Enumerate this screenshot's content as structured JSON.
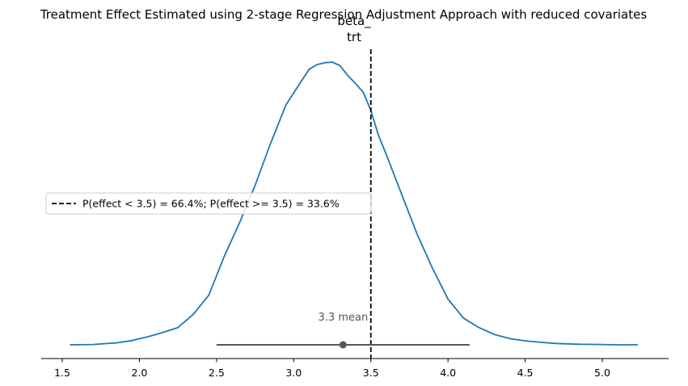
{
  "chart_data": {
    "type": "area",
    "title": "Treatment Effect Estimated using 2-stage Regression Adjustment Approach with reduced covariates",
    "subtitle_lines": [
      "beta_",
      "trt"
    ],
    "xlabel": "",
    "ylabel": "",
    "xlim": [
      1.37,
      5.38
    ],
    "x_ticks": [
      "1.5",
      "2.0",
      "2.5",
      "3.0",
      "3.5",
      "4.0",
      "4.5",
      "5.0"
    ],
    "x_tick_values": [
      1.5,
      2.0,
      2.5,
      3.0,
      3.5,
      4.0,
      4.5,
      5.0
    ],
    "series": [
      {
        "color": "#1f77b4",
        "x": [
          1.55,
          1.7,
          1.85,
          1.95,
          2.05,
          2.15,
          2.25,
          2.35,
          2.45,
          2.55,
          2.65,
          2.75,
          2.85,
          2.95,
          3.05,
          3.1,
          3.15,
          3.2,
          3.25,
          3.3,
          3.35,
          3.4,
          3.45,
          3.5,
          3.55,
          3.6,
          3.7,
          3.8,
          3.9,
          4.0,
          4.1,
          4.2,
          4.3,
          4.4,
          4.5,
          4.6,
          4.7,
          4.85,
          5.0,
          5.1,
          5.23
        ],
        "y": [
          0.0,
          0.001,
          0.007,
          0.015,
          0.028,
          0.043,
          0.061,
          0.108,
          0.176,
          0.313,
          0.433,
          0.565,
          0.713,
          0.849,
          0.933,
          0.975,
          0.991,
          0.998,
          1.0,
          0.988,
          0.953,
          0.925,
          0.894,
          0.829,
          0.74,
          0.673,
          0.532,
          0.391,
          0.27,
          0.162,
          0.095,
          0.061,
          0.037,
          0.022,
          0.014,
          0.009,
          0.005,
          0.002,
          0.001,
          0.0,
          0.0
        ]
      }
    ],
    "reference_line": {
      "value": 3.5,
      "style": "dashed",
      "color": "#000000"
    },
    "mean": {
      "value": 3.32,
      "label": "3.3 mean"
    },
    "hdi": {
      "low": 2.5,
      "high": 4.14,
      "color": "#555555"
    },
    "legend": {
      "entries": [
        "P(effect < 3.5) = 66.4%; P(effect >= 3.5) = 33.6%"
      ],
      "placement": "center-left"
    },
    "grid": false
  }
}
